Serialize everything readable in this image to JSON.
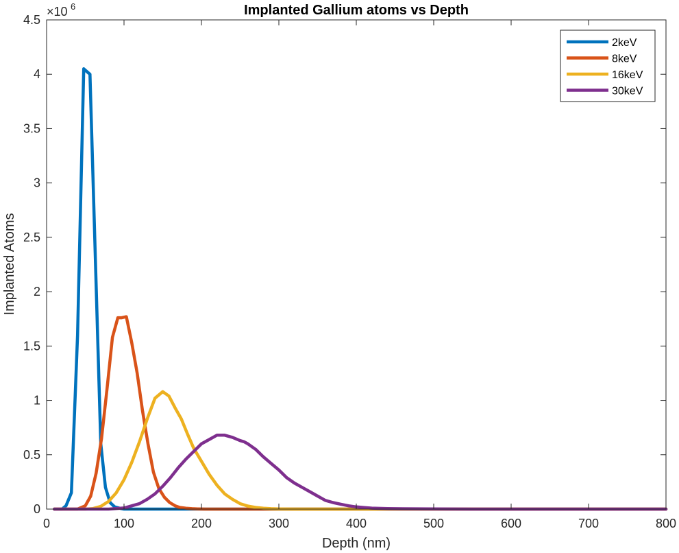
{
  "chart_data": {
    "type": "line",
    "title": "Implanted Gallium atoms vs Depth",
    "xlabel": "Depth (nm)",
    "ylabel": "Implanted Atoms",
    "y_exponent_label": "×10",
    "y_exponent_power": "6",
    "xlim": [
      0,
      800
    ],
    "ylim": [
      0,
      4500000
    ],
    "xticks": [
      0,
      100,
      200,
      300,
      400,
      500,
      600,
      700,
      800
    ],
    "xtick_labels": [
      "0",
      "100",
      "200",
      "300",
      "400",
      "500",
      "600",
      "700",
      "800"
    ],
    "yticks": [
      0,
      500000,
      1000000,
      1500000,
      2000000,
      2500000,
      3000000,
      3500000,
      4000000,
      4500000
    ],
    "ytick_labels": [
      "0",
      "0.5",
      "1",
      "1.5",
      "2",
      "2.5",
      "3",
      "3.5",
      "4",
      "4.5"
    ],
    "grid": false,
    "legend_position": "top-right",
    "series": [
      {
        "name": "2keV",
        "color": "#0072BD",
        "x": [
          10,
          20,
          25,
          32,
          40,
          48,
          56,
          63,
          70,
          76,
          82,
          88,
          96,
          100,
          110,
          120,
          200,
          300,
          400,
          500,
          600,
          700,
          800
        ],
        "y": [
          0,
          0,
          30000,
          150000,
          1600000,
          4050000,
          4000000,
          2300000,
          600000,
          200000,
          60000,
          20000,
          5000,
          0,
          0,
          0,
          0,
          0,
          0,
          0,
          0,
          0,
          0
        ]
      },
      {
        "name": "8keV",
        "color": "#D95319",
        "x": [
          10,
          40,
          50,
          57,
          64,
          71,
          78,
          85,
          92,
          97,
          103,
          110,
          117,
          124,
          131,
          138,
          145,
          152,
          159,
          166,
          172,
          180,
          188,
          195,
          205,
          220,
          250,
          300,
          400,
          500,
          600,
          700,
          800
        ],
        "y": [
          0,
          0,
          30000,
          120000,
          330000,
          650000,
          1100000,
          1580000,
          1760000,
          1760000,
          1770000,
          1530000,
          1250000,
          900000,
          600000,
          340000,
          190000,
          110000,
          60000,
          30000,
          15000,
          8000,
          4000,
          2000,
          0,
          0,
          0,
          0,
          0,
          0,
          0,
          0,
          0
        ]
      },
      {
        "name": "16keV",
        "color": "#EDB120",
        "x": [
          10,
          50,
          60,
          70,
          80,
          90,
          100,
          110,
          120,
          130,
          140,
          150,
          158,
          166,
          174,
          182,
          190,
          200,
          210,
          220,
          230,
          240,
          250,
          260,
          270,
          280,
          290,
          300,
          320,
          350,
          400,
          500,
          600,
          700,
          800
        ],
        "y": [
          0,
          0,
          5000,
          25000,
          70000,
          150000,
          270000,
          430000,
          620000,
          830000,
          1020000,
          1080000,
          1040000,
          930000,
          830000,
          690000,
          560000,
          440000,
          320000,
          220000,
          140000,
          90000,
          50000,
          28000,
          15000,
          8000,
          4000,
          2000,
          0,
          0,
          0,
          0,
          0,
          0,
          0
        ]
      },
      {
        "name": "30keV",
        "color": "#7E2F8E",
        "x": [
          10,
          80,
          100,
          120,
          130,
          140,
          150,
          160,
          170,
          180,
          190,
          200,
          210,
          220,
          230,
          240,
          250,
          255,
          260,
          270,
          280,
          290,
          300,
          310,
          320,
          330,
          340,
          350,
          360,
          370,
          380,
          390,
          400,
          410,
          420,
          440,
          460,
          500,
          550,
          600,
          700,
          800
        ],
        "y": [
          0,
          0,
          10000,
          50000,
          90000,
          140000,
          210000,
          290000,
          380000,
          460000,
          530000,
          600000,
          640000,
          680000,
          680000,
          660000,
          630000,
          620000,
          600000,
          550000,
          480000,
          420000,
          360000,
          290000,
          240000,
          200000,
          160000,
          120000,
          80000,
          60000,
          45000,
          30000,
          20000,
          14000,
          9000,
          5000,
          3000,
          1000,
          0,
          0,
          0,
          0
        ]
      }
    ]
  }
}
